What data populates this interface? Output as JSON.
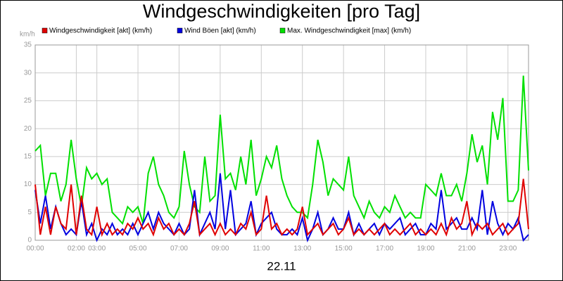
{
  "chart_data": {
    "type": "line",
    "title": "Windgeschwindigkeiten [pro Tag]",
    "y_label": "km/h",
    "x_label": "22.11",
    "xlim": [
      0,
      24
    ],
    "xticks": [
      {
        "value": 0,
        "label": "00:00"
      },
      {
        "value": 2,
        "label": "02:00"
      },
      {
        "value": 3,
        "label": "03:00"
      },
      {
        "value": 5,
        "label": "05:00"
      },
      {
        "value": 7,
        "label": "07:00"
      },
      {
        "value": 9,
        "label": "09:00"
      },
      {
        "value": 11,
        "label": "11:00"
      },
      {
        "value": 13,
        "label": "13:00"
      },
      {
        "value": 15,
        "label": "15:00"
      },
      {
        "value": 17,
        "label": "17:00"
      },
      {
        "value": 19,
        "label": "19:00"
      },
      {
        "value": 21,
        "label": "21:00"
      },
      {
        "value": 23,
        "label": "23:00"
      }
    ],
    "ylim": [
      0,
      35
    ],
    "yticks": [
      0,
      5,
      10,
      15,
      20,
      25,
      30,
      35
    ],
    "grid": true,
    "x": [
      0,
      0.25,
      0.5,
      0.75,
      1,
      1.25,
      1.5,
      1.75,
      2,
      2.25,
      2.5,
      2.75,
      3,
      3.25,
      3.5,
      3.75,
      4,
      4.25,
      4.5,
      4.75,
      5,
      5.25,
      5.5,
      5.75,
      6,
      6.25,
      6.5,
      6.75,
      7,
      7.25,
      7.5,
      7.75,
      8,
      8.25,
      8.5,
      8.75,
      9,
      9.25,
      9.5,
      9.75,
      10,
      10.25,
      10.5,
      10.75,
      11,
      11.25,
      11.5,
      11.75,
      12,
      12.25,
      12.5,
      12.75,
      13,
      13.25,
      13.5,
      13.75,
      14,
      14.25,
      14.5,
      14.75,
      15,
      15.25,
      15.5,
      15.75,
      16,
      16.25,
      16.5,
      16.75,
      17,
      17.25,
      17.5,
      17.75,
      18,
      18.25,
      18.5,
      18.75,
      19,
      19.25,
      19.5,
      19.75,
      20,
      20.25,
      20.5,
      20.75,
      21,
      21.25,
      21.5,
      21.75,
      22,
      22.25,
      22.5,
      22.75,
      23,
      23.25,
      23.5,
      23.75,
      24
    ],
    "series": [
      {
        "name": "Windgeschwindigkeit [akt] (km/h)",
        "color": "#e00000",
        "values": [
          10,
          1,
          6,
          1,
          6,
          3,
          2,
          10,
          1,
          8,
          2,
          1,
          6,
          1,
          3,
          1,
          2,
          1,
          3,
          2,
          4,
          2,
          3,
          1,
          4,
          2,
          3,
          1,
          2,
          1,
          3,
          7,
          1,
          2,
          3,
          1,
          3,
          1,
          2,
          1,
          3,
          2,
          5,
          1,
          2,
          8,
          2,
          3,
          1,
          2,
          1,
          2,
          6,
          1,
          2,
          3,
          1,
          2,
          3,
          1,
          2,
          4,
          1,
          2,
          1,
          2,
          1,
          2,
          3,
          1,
          2,
          1,
          2,
          3,
          1,
          2,
          1,
          2,
          1,
          3,
          1,
          4,
          2,
          3,
          7,
          1,
          3,
          2,
          3,
          1,
          2,
          3,
          1,
          2,
          3,
          11,
          2
        ]
      },
      {
        "name": "Wind Böen [akt] (km/h)",
        "color": "#0000e0",
        "values": [
          9,
          3,
          8,
          2,
          6,
          3,
          1,
          2,
          1,
          7,
          1,
          3,
          0,
          2,
          1,
          3,
          1,
          2,
          1,
          3,
          1,
          3,
          5,
          2,
          5,
          3,
          2,
          1,
          3,
          1,
          2,
          9,
          1,
          3,
          5,
          2,
          12,
          2,
          9,
          1,
          2,
          3,
          7,
          1,
          3,
          4,
          5,
          2,
          1,
          1,
          2,
          1,
          4,
          0,
          2,
          5,
          1,
          2,
          4,
          2,
          2,
          5,
          1,
          3,
          1,
          2,
          3,
          1,
          3,
          2,
          3,
          4,
          1,
          2,
          3,
          1,
          1,
          3,
          2,
          9,
          2,
          3,
          4,
          2,
          2,
          4,
          2,
          9,
          1,
          7,
          3,
          1,
          3,
          2,
          4,
          0,
          1
        ]
      },
      {
        "name": "Max. Windgeschwindigkeit [max] (km/h)",
        "color": "#00e000",
        "values": [
          16,
          17,
          8,
          12,
          12,
          7,
          10,
          18,
          11,
          6,
          13,
          11,
          12,
          10,
          11,
          5,
          4,
          3,
          6,
          5,
          6,
          3,
          12,
          15,
          10,
          8,
          5,
          4,
          6,
          16,
          10,
          6,
          5,
          15,
          7,
          8,
          22.5,
          11,
          12,
          9,
          15,
          10,
          18,
          8,
          11,
          15,
          13,
          17,
          11,
          8,
          6,
          5,
          5,
          4,
          10,
          18,
          14,
          8,
          11,
          10,
          9,
          15,
          8,
          6,
          4,
          7,
          5,
          4,
          6,
          5,
          8,
          6,
          4,
          5,
          4,
          4,
          10,
          9,
          8,
          12,
          8,
          8,
          10,
          7,
          12,
          19,
          14,
          17,
          10,
          23,
          18,
          25.5,
          7,
          7,
          9,
          29.5,
          12.5
        ]
      }
    ]
  }
}
